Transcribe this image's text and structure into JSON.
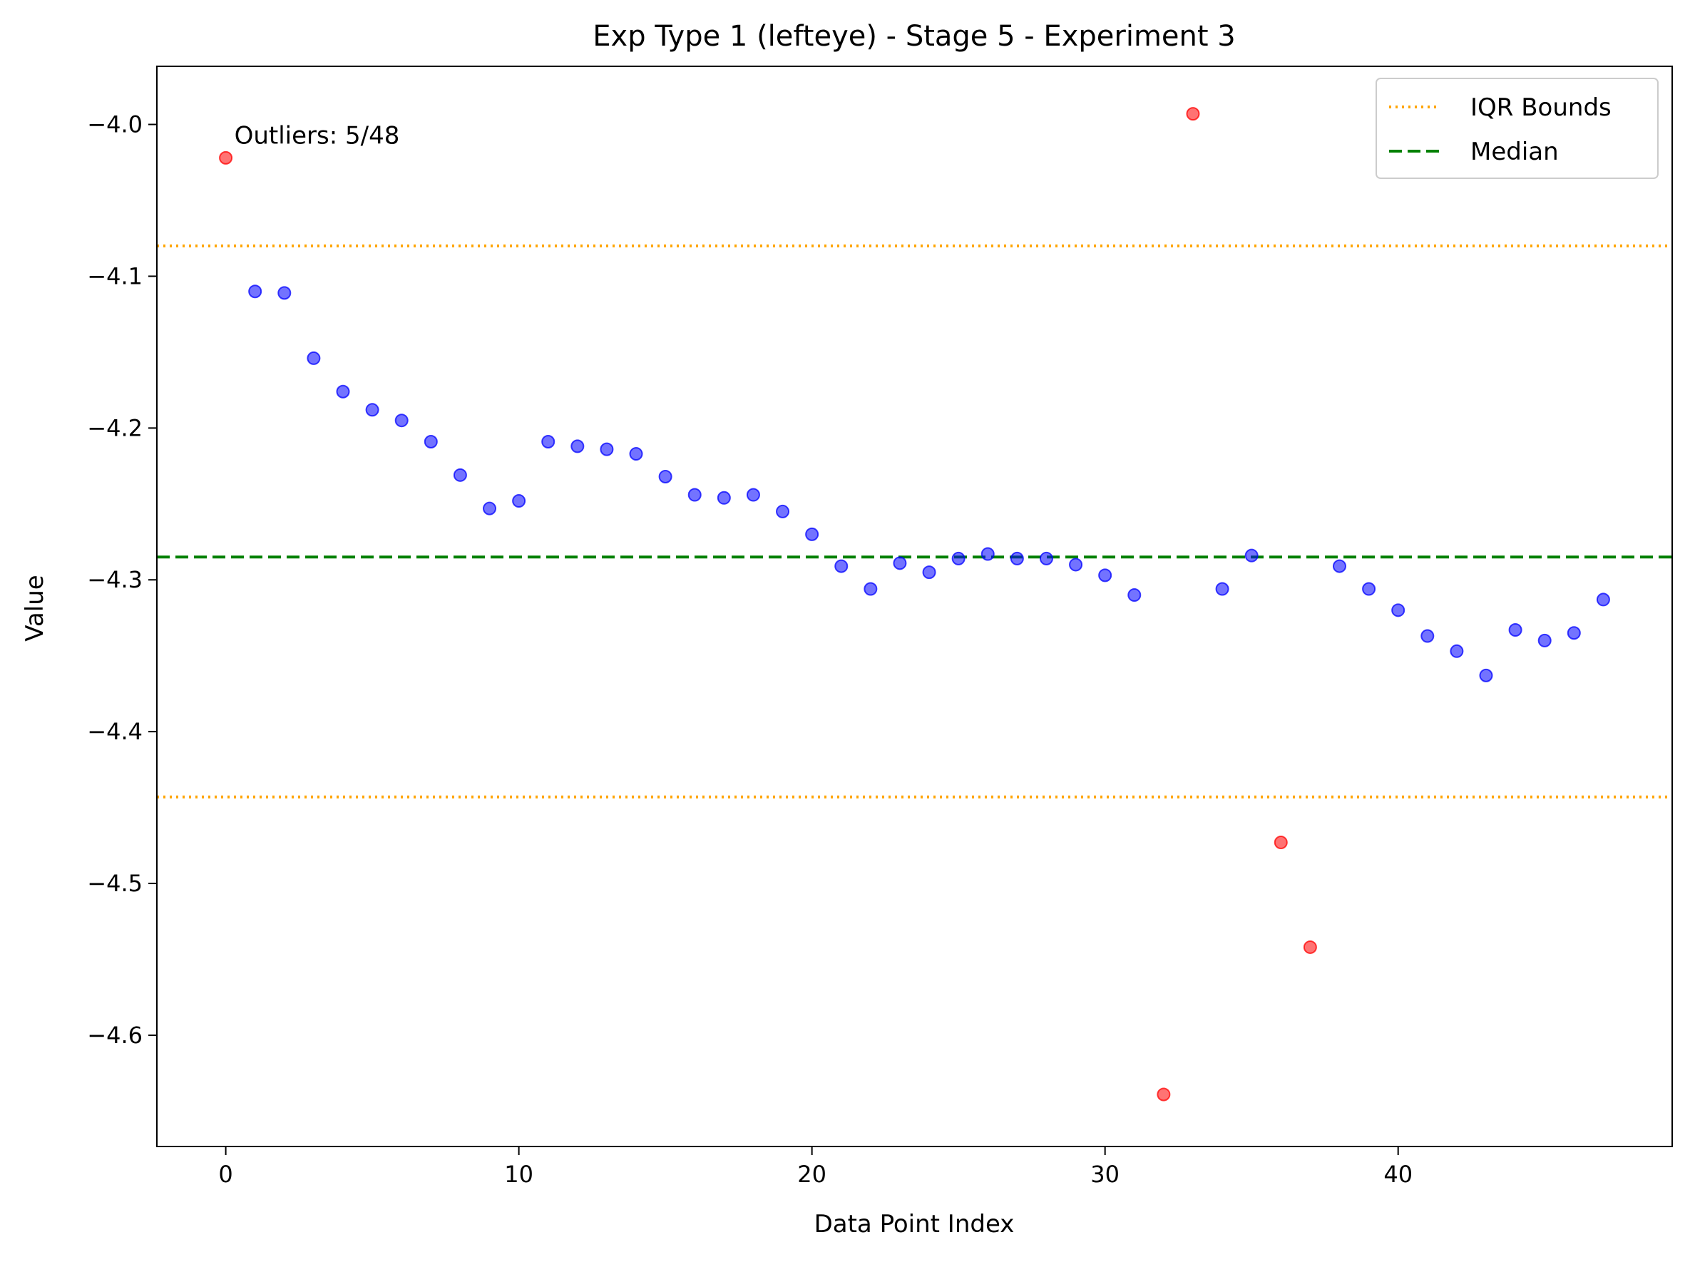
{
  "chart_data": {
    "type": "scatter",
    "title": "Exp Type 1 (lefteye) - Stage 5 - Experiment 3",
    "xlabel": "Data Point Index",
    "ylabel": "Value",
    "xlim": [
      -2.35,
      49.35
    ],
    "ylim": [
      -4.6733,
      -3.9617
    ],
    "xticks": [
      0,
      10,
      20,
      30,
      40
    ],
    "xtick_labels": [
      "0",
      "10",
      "20",
      "30",
      "40"
    ],
    "yticks": [
      -4.0,
      -4.1,
      -4.2,
      -4.3,
      -4.4,
      -4.5,
      -4.6
    ],
    "ytick_labels": [
      "−4.0",
      "−4.1",
      "−4.2",
      "−4.3",
      "−4.4",
      "−4.5",
      "−4.6"
    ],
    "grid": false,
    "legend_position": "top-right",
    "annotation": "Outliers: 5/48",
    "colors": {
      "normal": "#0000ff",
      "outlier": "#ff0000",
      "iqr": "#ffa500",
      "median": "#008000"
    },
    "series": [
      {
        "role": "normal",
        "points": [
          [
            1,
            -4.11
          ],
          [
            2,
            -4.111
          ],
          [
            3,
            -4.154
          ],
          [
            4,
            -4.176
          ],
          [
            5,
            -4.188
          ],
          [
            6,
            -4.195
          ],
          [
            7,
            -4.209
          ],
          [
            8,
            -4.231
          ],
          [
            9,
            -4.253
          ],
          [
            10,
            -4.248
          ],
          [
            11,
            -4.209
          ],
          [
            12,
            -4.212
          ],
          [
            13,
            -4.214
          ],
          [
            14,
            -4.217
          ],
          [
            15,
            -4.232
          ],
          [
            16,
            -4.244
          ],
          [
            17,
            -4.246
          ],
          [
            18,
            -4.244
          ],
          [
            19,
            -4.255
          ],
          [
            20,
            -4.27
          ],
          [
            21,
            -4.291
          ],
          [
            22,
            -4.306
          ],
          [
            23,
            -4.289
          ],
          [
            24,
            -4.295
          ],
          [
            25,
            -4.286
          ],
          [
            26,
            -4.283
          ],
          [
            27,
            -4.286
          ],
          [
            28,
            -4.286
          ],
          [
            29,
            -4.29
          ],
          [
            30,
            -4.297
          ],
          [
            31,
            -4.31
          ],
          [
            34,
            -4.306
          ],
          [
            35,
            -4.284
          ],
          [
            38,
            -4.291
          ],
          [
            39,
            -4.306
          ],
          [
            40,
            -4.32
          ],
          [
            41,
            -4.337
          ],
          [
            42,
            -4.347
          ],
          [
            43,
            -4.363
          ],
          [
            44,
            -4.333
          ],
          [
            45,
            -4.34
          ],
          [
            46,
            -4.335
          ],
          [
            47,
            -4.313
          ]
        ]
      },
      {
        "role": "outlier",
        "points": [
          [
            0,
            -4.022
          ],
          [
            32,
            -4.639
          ],
          [
            33,
            -3.993
          ],
          [
            36,
            -4.473
          ],
          [
            37,
            -4.542
          ]
        ]
      }
    ],
    "reference_lines": [
      {
        "name": "IQR Bounds",
        "style": "dotted",
        "color": "#ffa500",
        "values": [
          -4.08,
          -4.443
        ]
      },
      {
        "name": "Median",
        "style": "dashed",
        "color": "#008000",
        "values": [
          -4.285
        ]
      }
    ],
    "legend": [
      {
        "label": "IQR Bounds",
        "style": "dotted",
        "color": "#ffa500"
      },
      {
        "label": "Median",
        "style": "dashed",
        "color": "#008000"
      }
    ]
  }
}
